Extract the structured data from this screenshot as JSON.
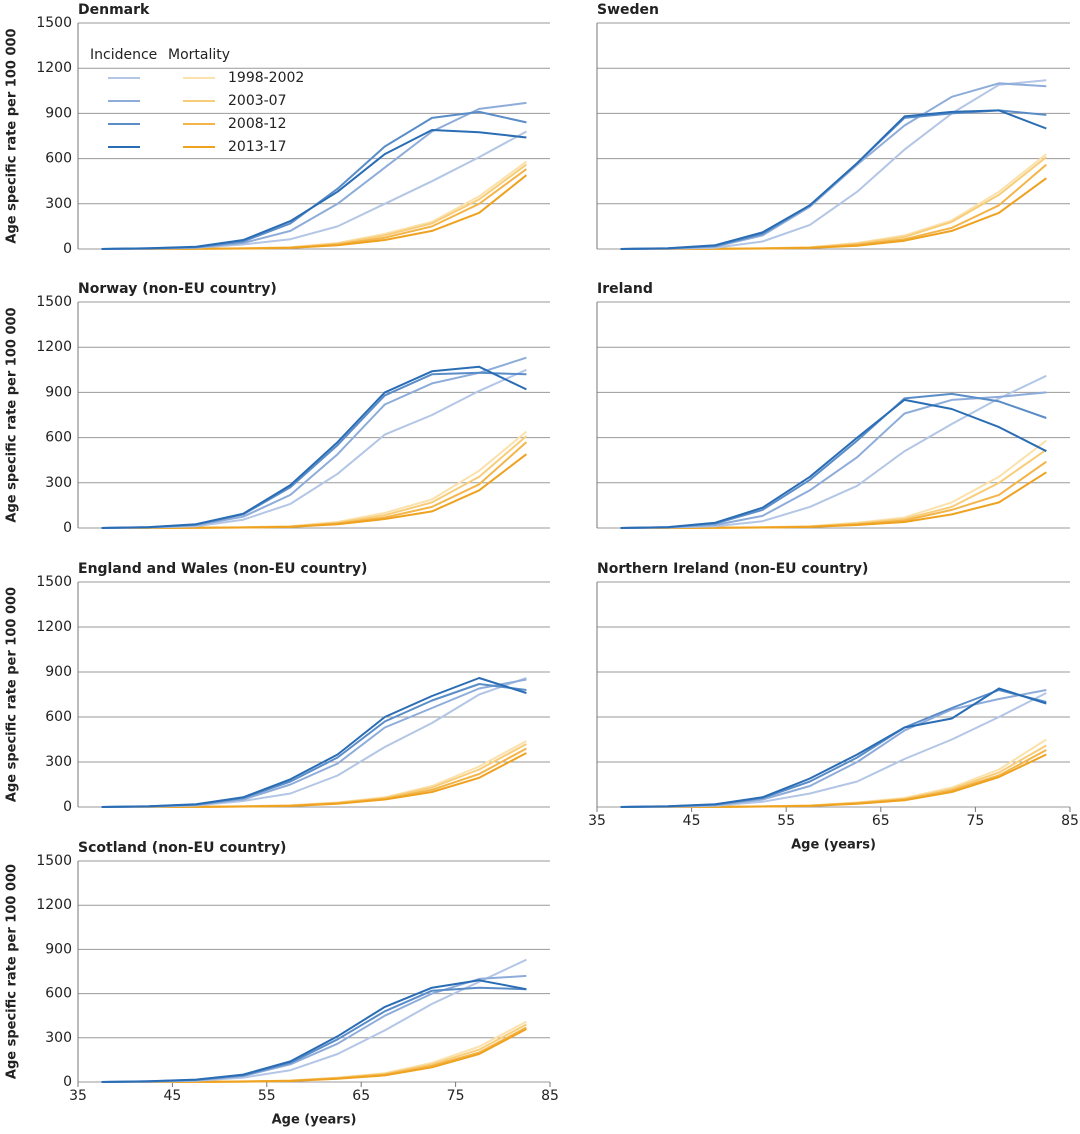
{
  "chart_data": [
    {
      "type": "line",
      "title": "Denmark",
      "y_label": "Age specific rate per 100 000",
      "ytick_labels": true,
      "x": [
        37.5,
        42.5,
        47.5,
        52.5,
        57.5,
        62.5,
        67.5,
        72.5,
        77.5,
        82.5
      ],
      "xlim": [
        35,
        85
      ],
      "ylim": [
        0,
        1500
      ],
      "yticks": [
        0,
        300,
        600,
        900,
        1200,
        1500
      ],
      "legend": {
        "headers": [
          "Incidence",
          "Mortality"
        ],
        "periods": [
          "1998-2002",
          "2003-07",
          "2008-12",
          "2013-17"
        ],
        "incidence_colors": [
          "#b3c6e5",
          "#8eacd9",
          "#5a8dc8",
          "#2a6db5"
        ],
        "mortality_colors": [
          "#fbe1ab",
          "#f8cd7a",
          "#f3b549",
          "#eea21f"
        ]
      },
      "incidence": [
        [
          0,
          2,
          8,
          30,
          65,
          150,
          300,
          450,
          610,
          780
        ],
        [
          0,
          3,
          10,
          40,
          120,
          300,
          540,
          780,
          930,
          970
        ],
        [
          0,
          4,
          12,
          50,
          170,
          400,
          680,
          870,
          910,
          840
        ],
        [
          0,
          5,
          15,
          60,
          185,
          380,
          630,
          790,
          775,
          740
        ]
      ],
      "mortality": [
        [
          0,
          0,
          1,
          5,
          12,
          40,
          100,
          180,
          350,
          580
        ],
        [
          0,
          0,
          1,
          4,
          10,
          35,
          90,
          170,
          330,
          560
        ],
        [
          0,
          0,
          1,
          3,
          8,
          30,
          75,
          150,
          300,
          530
        ],
        [
          0,
          0,
          1,
          3,
          7,
          25,
          60,
          120,
          240,
          490
        ]
      ]
    },
    {
      "type": "line",
      "title": "Sweden",
      "ytick_labels": false,
      "x": [
        37.5,
        42.5,
        47.5,
        52.5,
        57.5,
        62.5,
        67.5,
        72.5,
        77.5,
        82.5
      ],
      "xlim": [
        35,
        85
      ],
      "ylim": [
        0,
        1500
      ],
      "yticks": [
        0,
        300,
        600,
        900,
        1200,
        1500
      ],
      "incidence": [
        [
          0,
          2,
          8,
          50,
          160,
          380,
          660,
          900,
          1090,
          1120
        ],
        [
          0,
          3,
          15,
          90,
          280,
          560,
          820,
          1010,
          1100,
          1080
        ],
        [
          0,
          4,
          20,
          100,
          290,
          570,
          870,
          900,
          920,
          890
        ],
        [
          0,
          5,
          25,
          110,
          290,
          570,
          880,
          910,
          920,
          800
        ]
      ],
      "mortality": [
        [
          0,
          0,
          1,
          5,
          12,
          40,
          90,
          190,
          380,
          630
        ],
        [
          0,
          0,
          1,
          4,
          10,
          35,
          80,
          180,
          360,
          610
        ],
        [
          0,
          0,
          1,
          3,
          8,
          28,
          65,
          140,
          290,
          560
        ],
        [
          0,
          0,
          1,
          3,
          7,
          22,
          55,
          120,
          240,
          470
        ]
      ]
    },
    {
      "type": "line",
      "title": "Norway (non-EU country)",
      "y_label": "Age specific rate per 100 000",
      "ytick_labels": true,
      "x": [
        37.5,
        42.5,
        47.5,
        52.5,
        57.5,
        62.5,
        67.5,
        72.5,
        77.5,
        82.5
      ],
      "xlim": [
        35,
        85
      ],
      "ylim": [
        0,
        1500
      ],
      "yticks": [
        0,
        300,
        600,
        900,
        1200,
        1500
      ],
      "incidence": [
        [
          0,
          3,
          12,
          55,
          160,
          360,
          620,
          750,
          910,
          1050
        ],
        [
          0,
          4,
          18,
          75,
          220,
          490,
          820,
          960,
          1030,
          1130
        ],
        [
          0,
          5,
          22,
          90,
          270,
          550,
          880,
          1020,
          1030,
          1020
        ],
        [
          0,
          6,
          25,
          95,
          285,
          570,
          900,
          1040,
          1070,
          920
        ]
      ],
      "mortality": [
        [
          0,
          0,
          1,
          5,
          12,
          40,
          100,
          190,
          380,
          640
        ],
        [
          0,
          0,
          1,
          4,
          10,
          35,
          85,
          170,
          340,
          610
        ],
        [
          0,
          0,
          1,
          3,
          8,
          30,
          70,
          140,
          290,
          570
        ],
        [
          0,
          0,
          1,
          3,
          7,
          25,
          60,
          110,
          250,
          490
        ]
      ]
    },
    {
      "type": "line",
      "title": "Ireland",
      "ytick_labels": false,
      "x": [
        37.5,
        42.5,
        47.5,
        52.5,
        57.5,
        62.5,
        67.5,
        72.5,
        77.5,
        82.5
      ],
      "xlim": [
        35,
        85
      ],
      "ylim": [
        0,
        1500
      ],
      "yticks": [
        0,
        300,
        600,
        900,
        1200,
        1500
      ],
      "incidence": [
        [
          0,
          3,
          12,
          45,
          140,
          280,
          510,
          690,
          860,
          1010
        ],
        [
          0,
          4,
          20,
          80,
          250,
          470,
          760,
          850,
          870,
          900
        ],
        [
          0,
          5,
          30,
          120,
          320,
          580,
          860,
          890,
          840,
          730
        ],
        [
          0,
          6,
          35,
          135,
          340,
          600,
          850,
          790,
          670,
          510
        ]
      ],
      "mortality": [
        [
          0,
          0,
          1,
          5,
          12,
          35,
          70,
          170,
          340,
          580
        ],
        [
          0,
          0,
          1,
          4,
          10,
          30,
          60,
          140,
          300,
          520
        ],
        [
          0,
          0,
          1,
          3,
          8,
          25,
          50,
          120,
          220,
          440
        ],
        [
          0,
          0,
          1,
          3,
          7,
          20,
          40,
          90,
          170,
          370
        ]
      ]
    },
    {
      "type": "line",
      "title": "England and Wales (non-EU country)",
      "y_label": "Age specific rate per 100 000",
      "ytick_labels": true,
      "x": [
        37.5,
        42.5,
        47.5,
        52.5,
        57.5,
        62.5,
        67.5,
        72.5,
        77.5,
        82.5
      ],
      "xlim": [
        35,
        85
      ],
      "ylim": [
        0,
        1500
      ],
      "yticks": [
        0,
        300,
        600,
        900,
        1200,
        1500
      ],
      "incidence": [
        [
          0,
          2,
          10,
          40,
          90,
          210,
          400,
          560,
          750,
          860
        ],
        [
          0,
          3,
          14,
          50,
          150,
          290,
          530,
          660,
          790,
          850
        ],
        [
          0,
          4,
          16,
          60,
          170,
          330,
          570,
          710,
          820,
          780
        ],
        [
          0,
          5,
          18,
          65,
          185,
          350,
          600,
          740,
          860,
          760
        ]
      ],
      "mortality": [
        [
          0,
          0,
          1,
          5,
          12,
          30,
          65,
          140,
          270,
          440
        ],
        [
          0,
          0,
          1,
          4,
          10,
          28,
          60,
          130,
          250,
          420
        ],
        [
          0,
          0,
          1,
          3,
          8,
          25,
          55,
          115,
          220,
          390
        ],
        [
          0,
          0,
          1,
          3,
          7,
          22,
          50,
          100,
          195,
          360
        ]
      ]
    },
    {
      "type": "line",
      "title": "Northern Ireland (non-EU country)",
      "x_label": "Age (years)",
      "ytick_labels": false,
      "x": [
        37.5,
        42.5,
        47.5,
        52.5,
        57.5,
        62.5,
        67.5,
        72.5,
        77.5,
        82.5
      ],
      "xlim": [
        35,
        85
      ],
      "xticks": [
        35,
        45,
        55,
        65,
        75,
        85
      ],
      "ylim": [
        0,
        1500
      ],
      "yticks": [
        0,
        300,
        600,
        900,
        1200,
        1500
      ],
      "incidence": [
        [
          0,
          2,
          8,
          35,
          90,
          170,
          320,
          450,
          600,
          760
        ],
        [
          0,
          3,
          12,
          50,
          140,
          300,
          510,
          650,
          720,
          780
        ],
        [
          0,
          4,
          16,
          60,
          170,
          330,
          530,
          660,
          780,
          700
        ],
        [
          0,
          5,
          18,
          65,
          190,
          350,
          530,
          590,
          790,
          690
        ]
      ],
      "mortality": [
        [
          0,
          0,
          1,
          4,
          10,
          30,
          60,
          130,
          250,
          450
        ],
        [
          0,
          0,
          1,
          4,
          9,
          28,
          55,
          120,
          230,
          410
        ],
        [
          0,
          0,
          1,
          3,
          8,
          25,
          50,
          110,
          210,
          380
        ],
        [
          0,
          0,
          1,
          3,
          7,
          22,
          45,
          100,
          200,
          350
        ]
      ]
    },
    {
      "type": "line",
      "title": "Scotland (non-EU country)",
      "y_label": "Age specific rate per 100 000",
      "x_label": "Age (years)",
      "ytick_labels": true,
      "x": [
        37.5,
        42.5,
        47.5,
        52.5,
        57.5,
        62.5,
        67.5,
        72.5,
        77.5,
        82.5
      ],
      "xlim": [
        35,
        85
      ],
      "xticks": [
        35,
        45,
        55,
        65,
        75,
        85
      ],
      "ylim": [
        0,
        1500
      ],
      "yticks": [
        0,
        300,
        600,
        900,
        1200,
        1500
      ],
      "incidence": [
        [
          0,
          2,
          8,
          30,
          80,
          190,
          350,
          530,
          680,
          830
        ],
        [
          0,
          3,
          12,
          40,
          120,
          260,
          450,
          600,
          700,
          720
        ],
        [
          0,
          4,
          14,
          45,
          130,
          290,
          480,
          620,
          640,
          630
        ],
        [
          0,
          5,
          16,
          50,
          140,
          310,
          510,
          640,
          690,
          630
        ]
      ],
      "mortality": [
        [
          0,
          0,
          1,
          4,
          10,
          30,
          60,
          130,
          240,
          410
        ],
        [
          0,
          0,
          1,
          4,
          9,
          28,
          55,
          120,
          220,
          390
        ],
        [
          0,
          0,
          1,
          3,
          8,
          25,
          50,
          110,
          200,
          370
        ],
        [
          0,
          0,
          1,
          3,
          7,
          22,
          45,
          100,
          190,
          360
        ]
      ]
    }
  ]
}
